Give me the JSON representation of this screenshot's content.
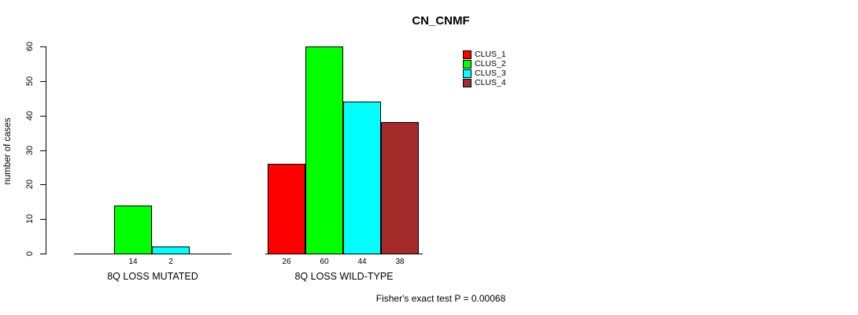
{
  "chart_data": {
    "type": "bar",
    "title": "CN_CNMF",
    "ylabel": "number of cases",
    "xlabel": "",
    "ylim": [
      0,
      60
    ],
    "yticks": [
      0,
      10,
      20,
      30,
      40,
      50,
      60
    ],
    "grid": false,
    "legend_position": "top-right",
    "axis_color": "#000000",
    "legend": [
      {
        "name": "CLUS_1",
        "color": "#ff0000"
      },
      {
        "name": "CLUS_2",
        "color": "#00ff00"
      },
      {
        "name": "CLUS_3",
        "color": "#00ffff"
      },
      {
        "name": "CLUS_4",
        "color": "#a52a2a"
      }
    ],
    "categories": [
      "8Q LOSS MUTATED",
      "8Q LOSS WILD-TYPE"
    ],
    "series": [
      {
        "name": "CLUS_1",
        "values": [
          0,
          26
        ]
      },
      {
        "name": "CLUS_2",
        "values": [
          14,
          60
        ]
      },
      {
        "name": "CLUS_3",
        "values": [
          2,
          44
        ]
      },
      {
        "name": "CLUS_4",
        "values": [
          0,
          38
        ]
      }
    ],
    "bar_value_labels": [
      [
        "",
        "14",
        "2",
        ""
      ],
      [
        "26",
        "60",
        "44",
        "38"
      ]
    ],
    "footer": "Fisher's exact test P = 0.00068"
  }
}
